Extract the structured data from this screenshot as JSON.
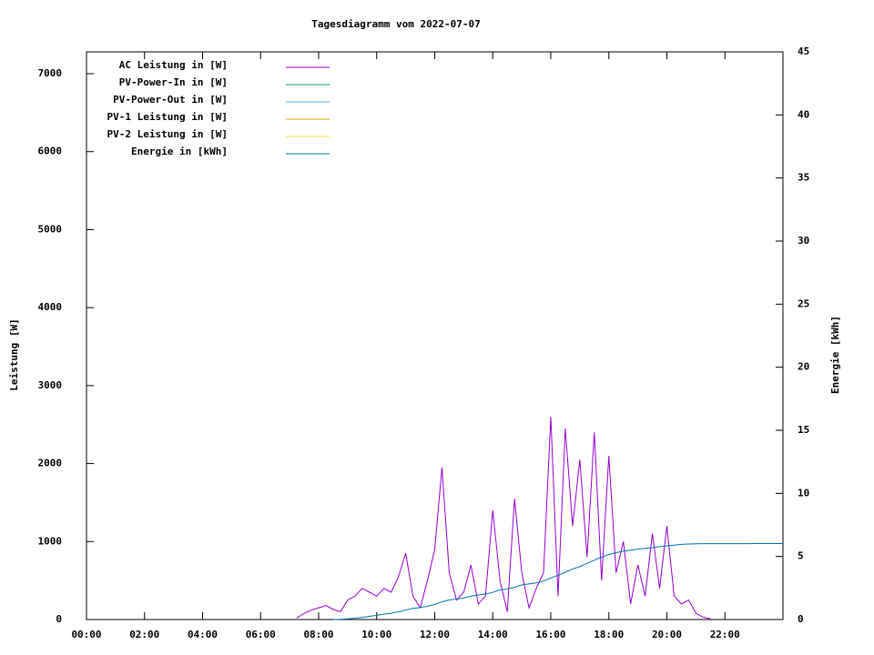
{
  "chart_data": {
    "type": "line",
    "title": "Tagesdiagramm vom 2022-07-07",
    "y_label": "Leistung [W]",
    "y2_label": "Energie [kWh]",
    "xlim": [
      0,
      24
    ],
    "ylim": [
      0,
      7280
    ],
    "y2lim": [
      0,
      45
    ],
    "xticks": [
      {
        "value": 0,
        "label": "00:00"
      },
      {
        "value": 2,
        "label": "02:00"
      },
      {
        "value": 4,
        "label": "04:00"
      },
      {
        "value": 6,
        "label": "06:00"
      },
      {
        "value": 8,
        "label": "08:00"
      },
      {
        "value": 10,
        "label": "10:00"
      },
      {
        "value": 12,
        "label": "12:00"
      },
      {
        "value": 14,
        "label": "14:00"
      },
      {
        "value": 16,
        "label": "16:00"
      },
      {
        "value": 18,
        "label": "18:00"
      },
      {
        "value": 20,
        "label": "20:00"
      },
      {
        "value": 22,
        "label": "22:00"
      }
    ],
    "yticks": [
      0,
      1000,
      2000,
      3000,
      4000,
      5000,
      6000,
      7000
    ],
    "y2ticks": [
      0,
      5,
      10,
      15,
      20,
      25,
      30,
      35,
      40,
      45
    ],
    "grid": false,
    "legend": "top-left",
    "x": [
      0,
      0.25,
      0.5,
      0.75,
      1,
      1.25,
      1.5,
      1.75,
      2,
      2.25,
      2.5,
      2.75,
      3,
      3.25,
      3.5,
      3.75,
      4,
      4.25,
      4.5,
      4.75,
      5,
      5.25,
      5.5,
      5.75,
      6,
      6.25,
      6.5,
      6.75,
      7,
      7.25,
      7.5,
      7.75,
      8,
      8.25,
      8.5,
      8.75,
      9,
      9.25,
      9.5,
      9.75,
      10,
      10.25,
      10.5,
      10.75,
      11,
      11.25,
      11.5,
      11.75,
      12,
      12.25,
      12.5,
      12.75,
      13,
      13.25,
      13.5,
      13.75,
      14,
      14.25,
      14.5,
      14.75,
      15,
      15.25,
      15.5,
      15.75,
      16,
      16.25,
      16.5,
      16.75,
      17,
      17.25,
      17.5,
      17.75,
      18,
      18.25,
      18.5,
      18.75,
      19,
      19.25,
      19.5,
      19.75,
      20,
      20.25,
      20.5,
      20.75,
      21,
      21.25,
      21.5,
      21.75,
      22,
      22.25,
      22.5,
      22.75,
      23,
      23.25,
      23.5,
      23.75,
      24
    ],
    "series": [
      {
        "name": "AC Leistung in [W]",
        "color": "#9400d3",
        "values": [
          null,
          null,
          null,
          null,
          null,
          null,
          null,
          null,
          null,
          null,
          null,
          null,
          null,
          null,
          null,
          null,
          null,
          null,
          null,
          null,
          null,
          null,
          null,
          null,
          null,
          null,
          null,
          null,
          null,
          20,
          80,
          120,
          150,
          180,
          130,
          100,
          250,
          300,
          400,
          350,
          300,
          400,
          350,
          550,
          850,
          300,
          150,
          500,
          900,
          1950,
          600,
          250,
          350,
          700,
          200,
          300,
          1400,
          500,
          100,
          1550,
          600,
          150,
          400,
          600,
          2600,
          300,
          2450,
          1200,
          2050,
          800,
          2400,
          500,
          2100,
          600,
          1000,
          200,
          700,
          300,
          1100,
          400,
          1200,
          300,
          200,
          250,
          80,
          30,
          10,
          null,
          null,
          null,
          null,
          null,
          null,
          null,
          null,
          null,
          null
        ]
      },
      {
        "name": "PV-Power-In in [W]",
        "color": "#009e73",
        "values": [
          null,
          null,
          null,
          null,
          null,
          null,
          null,
          null,
          null,
          null,
          null,
          null,
          null,
          null,
          null,
          null,
          null,
          null,
          null,
          null,
          null,
          null,
          null,
          null,
          null,
          null,
          null,
          null,
          null,
          null,
          null,
          null,
          null,
          null,
          null,
          null,
          null,
          null,
          null,
          null,
          null,
          null,
          null,
          null,
          null,
          null,
          null,
          null,
          null,
          null,
          null,
          null,
          null,
          null,
          null,
          null,
          null,
          null,
          null,
          null,
          null,
          null,
          null,
          null,
          null,
          null,
          null,
          null,
          null,
          null,
          null,
          null,
          null,
          null,
          null,
          null,
          null,
          null,
          null,
          null,
          null,
          null,
          null,
          null,
          null,
          null,
          null,
          null,
          null,
          null,
          null,
          null,
          null,
          null,
          null,
          null,
          null
        ]
      },
      {
        "name": "PV-Power-Out in [W]",
        "color": "#56b4e9",
        "values": [
          null,
          null,
          null,
          null,
          null,
          null,
          null,
          null,
          null,
          null,
          null,
          null,
          null,
          null,
          null,
          null,
          null,
          null,
          null,
          null,
          null,
          null,
          null,
          null,
          null,
          null,
          null,
          null,
          null,
          null,
          null,
          null,
          null,
          null,
          null,
          null,
          null,
          null,
          null,
          null,
          null,
          null,
          null,
          null,
          null,
          null,
          null,
          null,
          null,
          null,
          null,
          null,
          null,
          null,
          null,
          null,
          null,
          null,
          null,
          null,
          null,
          null,
          null,
          null,
          null,
          null,
          null,
          null,
          null,
          null,
          null,
          null,
          null,
          null,
          null,
          null,
          null,
          null,
          null,
          null,
          null,
          null,
          null,
          null,
          null,
          null,
          null,
          null,
          null,
          null,
          null,
          null,
          null,
          null,
          null,
          null,
          null
        ]
      },
      {
        "name": "PV-1 Leistung in [W]",
        "color": "#e69f00",
        "values": [
          null,
          null,
          null,
          null,
          null,
          null,
          null,
          null,
          null,
          null,
          null,
          null,
          null,
          null,
          null,
          null,
          null,
          null,
          null,
          null,
          null,
          null,
          null,
          null,
          null,
          null,
          null,
          null,
          null,
          null,
          null,
          null,
          null,
          null,
          null,
          null,
          null,
          null,
          null,
          null,
          null,
          null,
          null,
          null,
          null,
          null,
          null,
          null,
          null,
          null,
          null,
          null,
          null,
          null,
          null,
          null,
          null,
          null,
          null,
          null,
          null,
          null,
          null,
          null,
          null,
          null,
          null,
          null,
          null,
          null,
          null,
          null,
          null,
          null,
          null,
          null,
          null,
          null,
          null,
          null,
          null,
          null,
          null,
          null,
          null,
          null,
          null,
          null,
          null,
          null,
          null,
          null,
          null,
          null,
          null,
          null,
          null
        ]
      },
      {
        "name": "PV-2 Leistung in [W]",
        "color": "#f0e442",
        "values": [
          null,
          null,
          null,
          null,
          null,
          null,
          null,
          null,
          null,
          null,
          null,
          null,
          null,
          null,
          null,
          null,
          null,
          null,
          null,
          null,
          null,
          null,
          null,
          null,
          null,
          null,
          null,
          null,
          null,
          null,
          null,
          null,
          null,
          null,
          null,
          null,
          null,
          null,
          null,
          null,
          null,
          null,
          null,
          null,
          null,
          null,
          null,
          null,
          null,
          null,
          null,
          null,
          null,
          null,
          null,
          null,
          null,
          null,
          null,
          null,
          null,
          null,
          null,
          null,
          null,
          null,
          null,
          null,
          null,
          null,
          null,
          null,
          null,
          null,
          null,
          null,
          null,
          null,
          null,
          null,
          null,
          null,
          null,
          null,
          null,
          null,
          null,
          null,
          null,
          null,
          null,
          null,
          null,
          null,
          null,
          null,
          null
        ]
      },
      {
        "name": "Energie in [kWh]",
        "color": "#0072b2",
        "axis": "y2",
        "values": [
          null,
          null,
          null,
          null,
          null,
          null,
          null,
          null,
          null,
          null,
          null,
          null,
          null,
          null,
          null,
          null,
          null,
          null,
          null,
          null,
          null,
          null,
          null,
          null,
          null,
          null,
          null,
          null,
          null,
          null,
          null,
          null,
          null,
          null,
          0,
          0.02,
          0.05,
          0.1,
          0.17,
          0.25,
          0.33,
          0.42,
          0.5,
          0.6,
          0.75,
          0.88,
          0.95,
          1.05,
          1.2,
          1.4,
          1.55,
          1.62,
          1.7,
          1.85,
          1.95,
          2.02,
          2.15,
          2.35,
          2.42,
          2.55,
          2.75,
          2.82,
          2.9,
          3.05,
          3.3,
          3.5,
          3.75,
          4.0,
          4.2,
          4.45,
          4.7,
          4.95,
          5.15,
          5.3,
          5.42,
          5.5,
          5.58,
          5.64,
          5.7,
          5.78,
          5.85,
          5.9,
          5.96,
          5.99,
          6.0,
          6.01,
          6.01,
          6.01,
          6.01,
          6.01,
          6.01,
          6.01,
          6.02,
          6.02,
          6.02,
          6.02,
          6.02
        ]
      }
    ]
  }
}
